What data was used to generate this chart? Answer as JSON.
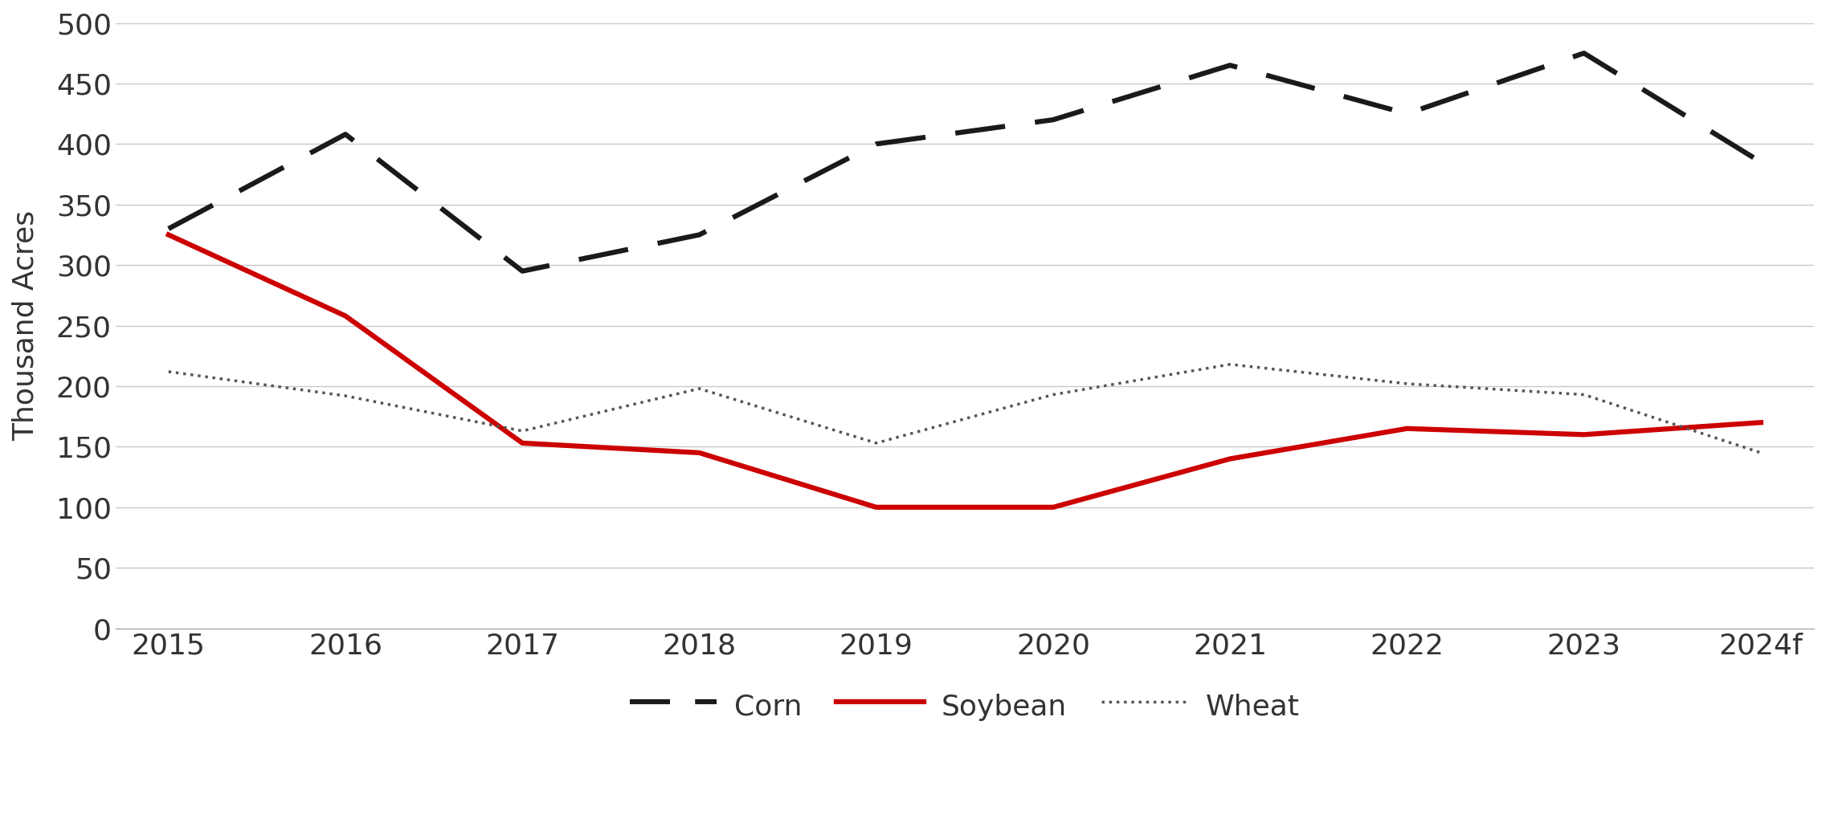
{
  "years": [
    "2015",
    "2016",
    "2017",
    "2018",
    "2019",
    "2020",
    "2021",
    "2022",
    "2023",
    "2024f"
  ],
  "corn": [
    330,
    408,
    295,
    325,
    400,
    420,
    465,
    425,
    475,
    385
  ],
  "soybean": [
    325,
    258,
    153,
    145,
    100,
    100,
    140,
    165,
    160,
    170
  ],
  "wheat": [
    212,
    192,
    163,
    198,
    153,
    193,
    218,
    202,
    193,
    145
  ],
  "corn_color": "#1a1a1a",
  "soybean_color": "#cc0000",
  "wheat_color": "#555555",
  "ylabel": "Thousand Acres",
  "ylim": [
    0,
    500
  ],
  "yticks": [
    0,
    50,
    100,
    150,
    200,
    250,
    300,
    350,
    400,
    450,
    500
  ],
  "background_color": "#ffffff",
  "grid_color": "#c8c8c8",
  "legend_labels": [
    "Corn",
    "Soybean",
    "Wheat"
  ],
  "corn_linewidth": 4.5,
  "soybean_linewidth": 4.5,
  "wheat_linewidth": 2.5,
  "tick_fontsize": 26,
  "ylabel_fontsize": 26,
  "legend_fontsize": 26
}
